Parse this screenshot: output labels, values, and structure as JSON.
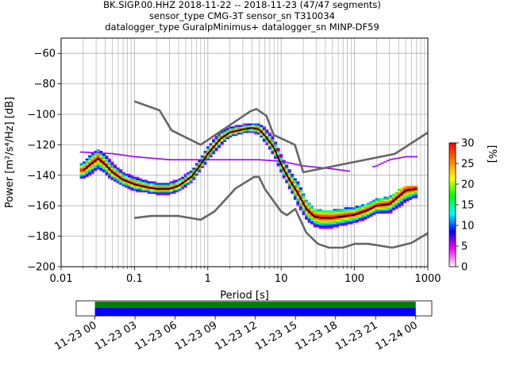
{
  "chart_data": {
    "type": "heatmap",
    "title_lines": [
      "BK.SIGP.00.HHZ   2018-11-22 -- 2018-11-23  (47/47 segments)",
      "sensor_type CMG-3T sensor_sn T310034",
      "datalogger_type GuralpMinimus+ datalogger_sn MINP-DF59"
    ],
    "xlabel": "Period [s]",
    "ylabel": "Power [m²/s⁴/Hz] [dB]",
    "x_scale": "log",
    "xlim": [
      0.01,
      1000
    ],
    "ylim": [
      -200,
      -50
    ],
    "x_ticks": [
      {
        "value": 0.01,
        "label": "0.01"
      },
      {
        "value": 0.1,
        "label": "0.1"
      },
      {
        "value": 1,
        "label": "1"
      },
      {
        "value": 10,
        "label": "10"
      },
      {
        "value": 100,
        "label": "100"
      },
      {
        "value": 1000,
        "label": "1000"
      }
    ],
    "y_ticks": [
      {
        "value": -60,
        "label": "−60"
      },
      {
        "value": -80,
        "label": "−80"
      },
      {
        "value": -100,
        "label": "−100"
      },
      {
        "value": -120,
        "label": "−120"
      },
      {
        "value": -140,
        "label": "−140"
      },
      {
        "value": -160,
        "label": "−160"
      },
      {
        "value": -180,
        "label": "−180"
      },
      {
        "value": -200,
        "label": "−200"
      }
    ],
    "grid": true,
    "colorbar": {
      "label": "[%]",
      "range": [
        0,
        30
      ],
      "ticks": [
        {
          "value": 0,
          "label": "0"
        },
        {
          "value": 5,
          "label": "5"
        },
        {
          "value": 10,
          "label": "10"
        },
        {
          "value": 15,
          "label": "15"
        },
        {
          "value": 20,
          "label": "20"
        },
        {
          "value": 25,
          "label": "25"
        },
        {
          "value": 30,
          "label": "30"
        }
      ],
      "colors": [
        "#ffffff",
        "#ff00ff",
        "#0000ff",
        "#00ffff",
        "#00ff00",
        "#ffff00",
        "#ff8000",
        "#ff0000"
      ]
    },
    "series": [
      {
        "role": "new-high-noise-model",
        "color": "#666666",
        "x": [
          0.1,
          0.22,
          0.32,
          0.8,
          3.8,
          4.6,
          6.3,
          7.9,
          15.4,
          20,
          354.8,
          1000
        ],
        "y": [
          -91.5,
          -97.4,
          -110.5,
          -120,
          -98,
          -96.5,
          -101,
          -113.5,
          -120,
          -138,
          -126,
          -112
        ]
      },
      {
        "role": "new-low-noise-model",
        "color": "#666666",
        "x": [
          0.1,
          0.17,
          0.4,
          0.8,
          1.24,
          2.4,
          4.3,
          5,
          6,
          10,
          12,
          15.6,
          21.9,
          31.6,
          45,
          70,
          101,
          154,
          328,
          600,
          1000
        ],
        "y": [
          -168,
          -166.7,
          -166.7,
          -169.2,
          -163.7,
          -148.6,
          -141.1,
          -141.1,
          -149,
          -163.8,
          -166.2,
          -162.1,
          -177.5,
          -185,
          -187.5,
          -187.5,
          -185,
          -185,
          -187.5,
          -184.4,
          -178
        ]
      },
      {
        "role": "mode",
        "color": "#000000",
        "x": [
          0.02,
          0.025,
          0.032,
          0.04,
          0.05,
          0.07,
          0.1,
          0.15,
          0.2,
          0.3,
          0.4,
          0.6,
          0.8,
          1.0,
          1.5,
          2,
          3,
          4,
          5,
          6,
          8,
          10,
          13,
          17,
          22,
          28,
          35,
          50,
          70,
          100,
          150,
          200,
          300,
          500,
          700
        ],
        "y": [
          -137,
          -133,
          -129,
          -133,
          -138,
          -143,
          -146,
          -148,
          -149,
          -149,
          -147,
          -141,
          -133,
          -126,
          -116,
          -112,
          -110,
          -109,
          -110,
          -114,
          -122,
          -133,
          -143,
          -152,
          -162,
          -167,
          -168,
          -168,
          -167,
          -166,
          -163,
          -160,
          -159,
          -150,
          -149
        ]
      },
      {
        "role": "psd-spread-low",
        "x": [
          0.02,
          0.025,
          0.032,
          0.04,
          0.05,
          0.07,
          0.1,
          0.15,
          0.2,
          0.3,
          0.4,
          0.6,
          0.8,
          1.0,
          1.5,
          2,
          3,
          4,
          5,
          6,
          8,
          10,
          13,
          17,
          22,
          28,
          35,
          50,
          70,
          100,
          150,
          200,
          300,
          500,
          700
        ],
        "y": [
          -143,
          -140,
          -137,
          -139,
          -143,
          -147,
          -150,
          -152,
          -153,
          -153,
          -151,
          -145,
          -137,
          -130,
          -120,
          -115,
          -113,
          -112,
          -114,
          -118,
          -127,
          -138,
          -149,
          -160,
          -170,
          -175,
          -177,
          -176,
          -174,
          -172,
          -170,
          -167,
          -166,
          -162,
          -158
        ]
      },
      {
        "role": "psd-spread-high",
        "x": [
          0.02,
          0.025,
          0.032,
          0.04,
          0.05,
          0.07,
          0.1,
          0.15,
          0.2,
          0.3,
          0.4,
          0.6,
          0.8,
          1.0,
          1.5,
          2,
          3,
          4,
          5,
          6,
          8,
          10,
          13,
          17,
          22,
          28,
          35,
          50,
          70,
          100,
          150,
          200,
          300,
          500,
          700
        ],
        "y": [
          -133,
          -128,
          -124,
          -128,
          -133,
          -139,
          -142,
          -145,
          -146,
          -146,
          -144,
          -138,
          -130,
          -122,
          -112,
          -109,
          -108,
          -107,
          -107,
          -110,
          -117,
          -128,
          -138,
          -146,
          -157,
          -163,
          -164,
          -164,
          -163,
          -162,
          -160,
          -157,
          -155,
          -148,
          -148
        ]
      },
      {
        "role": "spurious-purple-line",
        "color": "#9900ff",
        "x": [
          0.02,
          0.05,
          0.1,
          0.3,
          0.8,
          2,
          5,
          10,
          20,
          50,
          100,
          200,
          300,
          500,
          700
        ],
        "y": [
          -125,
          -126,
          -128,
          -130,
          -130,
          -130,
          -130,
          -131,
          -134,
          -136,
          -138,
          -134,
          -130,
          -128,
          -128
        ]
      }
    ],
    "timeline": {
      "tick_labels": [
        "11-23 00",
        "11-23 03",
        "11-23 06",
        "11-23 09",
        "11-23 12",
        "11-23 15",
        "11-23 18",
        "11-23 21",
        "11-24 00"
      ],
      "range_hours": [
        -1.4,
        25.2
      ],
      "data_coverage_hours": [
        0,
        24
      ],
      "colors": {
        "top": "#008000",
        "bottom": "#0000ff"
      }
    }
  }
}
